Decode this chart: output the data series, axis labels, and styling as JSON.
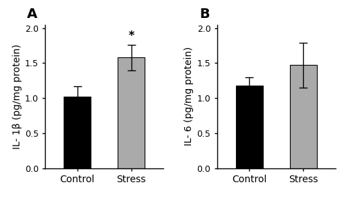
{
  "panel_A": {
    "label": "A",
    "categories": [
      "Control",
      "Stress"
    ],
    "values": [
      1.02,
      1.58
    ],
    "errors": [
      0.15,
      0.18
    ],
    "bar_colors": [
      "#000000",
      "#aaaaaa"
    ],
    "ylabel": "IL- 1β (pg/mg protein)",
    "ylim": [
      0.0,
      2.05
    ],
    "yticks": [
      0.0,
      0.5,
      1.0,
      1.5,
      2.0
    ],
    "significance": "*",
    "sig_bar_index": 1
  },
  "panel_B": {
    "label": "B",
    "categories": [
      "Control",
      "Stress"
    ],
    "values": [
      1.18,
      1.47
    ],
    "errors": [
      0.12,
      0.32
    ],
    "bar_colors": [
      "#000000",
      "#aaaaaa"
    ],
    "ylabel": "IL- 6 (pg/mg protein)",
    "ylim": [
      0.0,
      2.05
    ],
    "yticks": [
      0.0,
      0.5,
      1.0,
      1.5,
      2.0
    ],
    "significance": null,
    "sig_bar_index": null
  },
  "bar_width": 0.5,
  "background_color": "#ffffff",
  "ylabel_fontsize": 10,
  "tick_fontsize": 9,
  "panel_label_fontsize": 14,
  "xlabel_fontsize": 10,
  "capsize": 4
}
